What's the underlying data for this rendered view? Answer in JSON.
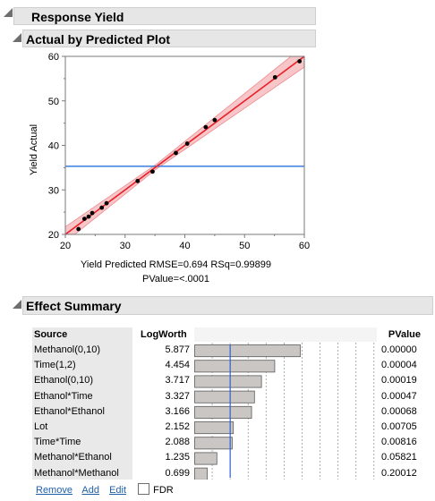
{
  "report": {
    "title": "Response Yield"
  },
  "plot_section": {
    "title": "Actual by Predicted Plot"
  },
  "plot": {
    "ylabel": "Yield Actual",
    "xlabel_line1": "Yield Predicted RMSE=0.694 RSq=0.99899",
    "xlabel_line2": "PValue=<.0001",
    "x_ticks": [
      "20",
      "30",
      "40",
      "50",
      "60"
    ],
    "y_ticks": [
      "20",
      "30",
      "40",
      "50",
      "60"
    ],
    "line_color": "#e8202a",
    "band_color": "#f4b3b6",
    "mean_line_color": "#3a7de0"
  },
  "chart_data": {
    "type": "scatter",
    "title": "Actual by Predicted Plot",
    "xlabel": "Yield Predicted",
    "ylabel": "Yield Actual",
    "xlim": [
      20,
      60
    ],
    "ylim": [
      20,
      60
    ],
    "mean_y": 35.3,
    "fit": {
      "slope": 1,
      "intercept": 0
    },
    "points": [
      {
        "x": 22.2,
        "y": 21.2
      },
      {
        "x": 23.2,
        "y": 23.5
      },
      {
        "x": 23.9,
        "y": 24.0
      },
      {
        "x": 24.5,
        "y": 24.8
      },
      {
        "x": 26.1,
        "y": 26.0
      },
      {
        "x": 26.9,
        "y": 27.0
      },
      {
        "x": 32.1,
        "y": 32.0
      },
      {
        "x": 34.6,
        "y": 34.1
      },
      {
        "x": 38.5,
        "y": 38.3
      },
      {
        "x": 40.4,
        "y": 40.4
      },
      {
        "x": 43.5,
        "y": 44.1
      },
      {
        "x": 45.0,
        "y": 45.7
      },
      {
        "x": 55.1,
        "y": 55.3
      },
      {
        "x": 59.2,
        "y": 58.9
      }
    ]
  },
  "effect_section": {
    "title": "Effect Summary"
  },
  "effect_table": {
    "headers": {
      "source": "Source",
      "logworth": "LogWorth",
      "pvalue": "PValue"
    },
    "rows": [
      {
        "source": "Methanol(0,10)",
        "logworth": "5.877",
        "lw": 5.877,
        "pvalue": "0.00000"
      },
      {
        "source": "Time(1,2)",
        "logworth": "4.454",
        "lw": 4.454,
        "pvalue": "0.00004"
      },
      {
        "source": "Ethanol(0,10)",
        "logworth": "3.717",
        "lw": 3.717,
        "pvalue": "0.00019"
      },
      {
        "source": "Ethanol*Time",
        "logworth": "3.327",
        "lw": 3.327,
        "pvalue": "0.00047"
      },
      {
        "source": "Ethanol*Ethanol",
        "logworth": "3.166",
        "lw": 3.166,
        "pvalue": "0.00068"
      },
      {
        "source": "Lot",
        "logworth": "2.152",
        "lw": 2.152,
        "pvalue": "0.00705"
      },
      {
        "source": "Time*Time",
        "logworth": "2.088",
        "lw": 2.088,
        "pvalue": "0.00816"
      },
      {
        "source": "Methanol*Ethanol",
        "logworth": "1.235",
        "lw": 1.235,
        "pvalue": "0.05821"
      },
      {
        "source": "Methanol*Methanol",
        "logworth": "0.699",
        "lw": 0.699,
        "pvalue": "0.20012"
      }
    ],
    "significance_logworth": 2.0
  },
  "footer": {
    "remove": "Remove",
    "add": "Add",
    "edit": "Edit",
    "fdr": "FDR"
  }
}
